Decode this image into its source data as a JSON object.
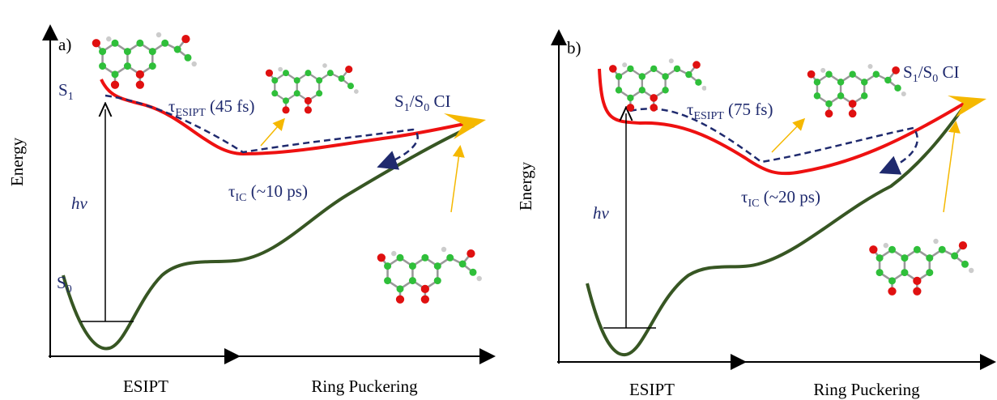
{
  "panels": [
    {
      "label": "a)",
      "y_axis": "Energy",
      "x_axis_left": "ESIPT",
      "x_axis_right": "Ring Puckering",
      "s1": {
        "symbol": "S",
        "subscript": "1"
      },
      "s0": {
        "symbol": "S",
        "subscript": "0"
      },
      "excitation": "hv",
      "esipt_time": {
        "symbol": "τ",
        "subscript": "ESIPT",
        "text": " (45 fs)"
      },
      "ic_time": {
        "symbol": "τ",
        "subscript": "IC",
        "text": " (~10 ps)"
      },
      "ci": {
        "s1": "S",
        "s1_sub": "1",
        "sep": "/S",
        "s0_sub": "0",
        "text": " CI"
      }
    },
    {
      "label": "b)",
      "y_axis": "Energy",
      "x_axis_left": "ESIPT",
      "x_axis_right": "Ring Puckering",
      "excitation": "hv",
      "esipt_time": {
        "symbol": "τ",
        "subscript": "ESIPT",
        "text": " (75 fs)"
      },
      "ic_time": {
        "symbol": "τ",
        "subscript": "IC",
        "text": " (~20 ps)"
      },
      "ci": {
        "s1": "S",
        "s1_sub": "1",
        "sep": "/S",
        "s0_sub": "0",
        "text": " CI"
      }
    }
  ]
}
